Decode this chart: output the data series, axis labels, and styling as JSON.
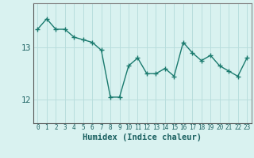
{
  "x": [
    0,
    1,
    2,
    3,
    4,
    5,
    6,
    7,
    8,
    9,
    10,
    11,
    12,
    13,
    14,
    15,
    16,
    17,
    18,
    19,
    20,
    21,
    22,
    23
  ],
  "y": [
    13.35,
    13.55,
    13.35,
    13.35,
    13.2,
    13.15,
    13.1,
    12.95,
    12.05,
    12.05,
    12.65,
    12.8,
    12.5,
    12.5,
    12.6,
    12.45,
    13.1,
    12.9,
    12.75,
    12.85,
    12.65,
    12.55,
    12.45,
    12.8
  ],
  "line_color": "#1a7a6e",
  "marker": "+",
  "marker_size": 4,
  "marker_linewidth": 1.0,
  "bg_color": "#d9f2f0",
  "grid_color": "#b8dedd",
  "axis_color": "#888888",
  "xlabel": "Humidex (Indice chaleur)",
  "xlabel_fontsize": 7.5,
  "ytick_labels": [
    "12",
    "13"
  ],
  "ytick_values": [
    12,
    13
  ],
  "ylim": [
    11.55,
    13.85
  ],
  "xlim": [
    -0.5,
    23.5
  ],
  "xtick_values": [
    0,
    1,
    2,
    3,
    4,
    5,
    6,
    7,
    8,
    9,
    10,
    11,
    12,
    13,
    14,
    15,
    16,
    17,
    18,
    19,
    20,
    21,
    22,
    23
  ],
  "linewidth": 1.0
}
